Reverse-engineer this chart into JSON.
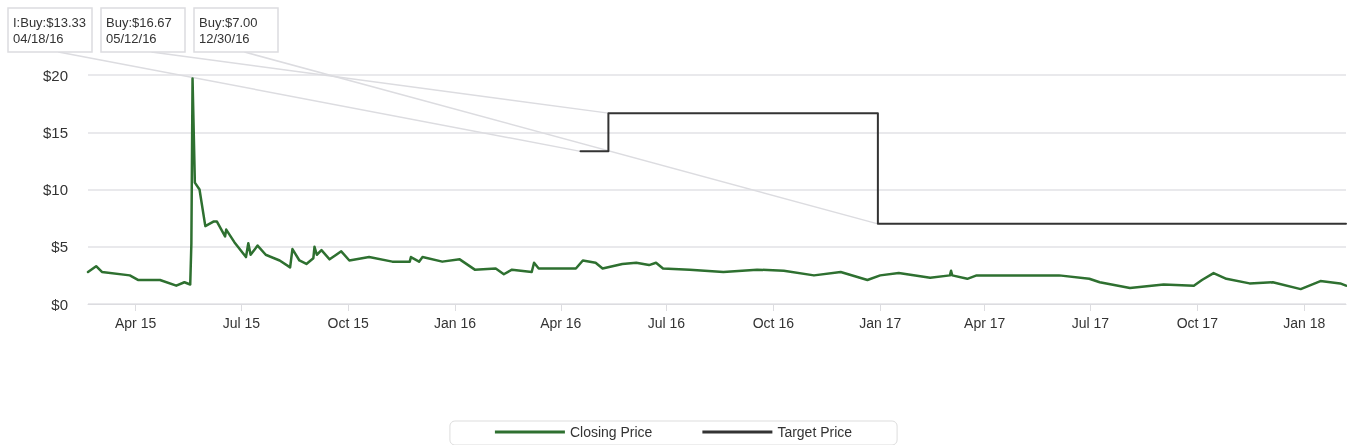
{
  "chart_data": {
    "type": "line",
    "xlim": [
      "2015-02-19",
      "2018-02-06"
    ],
    "xticks": [
      {
        "value": "2015-04-01",
        "label": "Apr 15"
      },
      {
        "value": "2015-07-01",
        "label": "Jul 15"
      },
      {
        "value": "2015-10-01",
        "label": "Oct 15"
      },
      {
        "value": "2016-01-01",
        "label": "Jan 16"
      },
      {
        "value": "2016-04-01",
        "label": "Apr 16"
      },
      {
        "value": "2016-07-01",
        "label": "Jul 16"
      },
      {
        "value": "2016-10-01",
        "label": "Oct 16"
      },
      {
        "value": "2017-01-01",
        "label": "Jan 17"
      },
      {
        "value": "2017-04-01",
        "label": "Apr 17"
      },
      {
        "value": "2017-07-01",
        "label": "Jul 17"
      },
      {
        "value": "2017-10-01",
        "label": "Oct 17"
      },
      {
        "value": "2018-01-01",
        "label": "Jan 18"
      }
    ],
    "ylim": [
      0,
      20
    ],
    "yticks": [
      {
        "value": 0,
        "label": "$0"
      },
      {
        "value": 5,
        "label": "$5"
      },
      {
        "value": 10,
        "label": "$10"
      },
      {
        "value": 15,
        "label": "$15"
      },
      {
        "value": 20,
        "label": "$20"
      }
    ],
    "grid": "y",
    "legend": "bottom",
    "marker": "none",
    "series": [
      {
        "name": "Closing Price",
        "type": "line",
        "color": "#2e7030",
        "x": [
          "2015-02-19",
          "2015-02-26",
          "2015-03-03",
          "2015-03-27",
          "2015-04-03",
          "2015-04-22",
          "2015-05-06",
          "2015-05-13",
          "2015-05-18",
          "2015-05-19",
          "2015-05-20",
          "2015-05-22",
          "2015-05-26",
          "2015-05-31",
          "2015-06-07",
          "2015-06-10",
          "2015-06-17",
          "2015-06-18",
          "2015-06-25",
          "2015-07-05",
          "2015-07-07",
          "2015-07-09",
          "2015-07-15",
          "2015-07-22",
          "2015-08-03",
          "2015-08-12",
          "2015-08-14",
          "2015-08-20",
          "2015-08-26",
          "2015-09-01",
          "2015-09-02",
          "2015-09-04",
          "2015-09-08",
          "2015-09-15",
          "2015-09-25",
          "2015-10-02",
          "2015-10-19",
          "2015-11-08",
          "2015-11-23",
          "2015-11-24",
          "2015-12-01",
          "2015-12-04",
          "2015-12-21",
          "2016-01-05",
          "2016-01-18",
          "2016-02-05",
          "2016-02-12",
          "2016-02-19",
          "2016-03-07",
          "2016-03-09",
          "2016-03-13",
          "2016-04-14",
          "2016-04-20",
          "2016-05-01",
          "2016-05-07",
          "2016-05-24",
          "2016-06-05",
          "2016-06-16",
          "2016-06-22",
          "2016-06-28",
          "2016-07-21",
          "2016-08-19",
          "2016-09-17",
          "2016-10-10",
          "2016-11-05",
          "2016-11-28",
          "2016-12-21",
          "2017-01-01",
          "2017-01-17",
          "2017-02-13",
          "2017-03-02",
          "2017-03-03",
          "2017-03-04",
          "2017-03-17",
          "2017-03-25",
          "2017-05-06",
          "2017-06-04",
          "2017-06-30",
          "2017-07-09",
          "2017-08-04",
          "2017-09-02",
          "2017-09-28",
          "2017-10-05",
          "2017-10-15",
          "2017-10-26",
          "2017-11-15",
          "2017-12-05",
          "2017-12-29",
          "2018-01-15",
          "2018-02-01",
          "2018-02-06"
        ],
        "values": [
          2.8,
          3.3,
          2.8,
          2.5,
          2.1,
          2.1,
          1.6,
          1.9,
          1.7,
          5.3,
          19.7,
          10.6,
          10.0,
          6.8,
          7.2,
          7.2,
          5.9,
          6.5,
          5.4,
          4.1,
          5.3,
          4.3,
          5.1,
          4.3,
          3.8,
          3.2,
          4.8,
          3.8,
          3.5,
          4.0,
          5.0,
          4.3,
          4.7,
          3.9,
          4.6,
          3.8,
          4.1,
          3.7,
          3.7,
          4.1,
          3.7,
          4.1,
          3.7,
          3.9,
          3.0,
          3.1,
          2.6,
          3.0,
          2.8,
          3.6,
          3.1,
          3.1,
          3.8,
          3.6,
          3.1,
          3.5,
          3.6,
          3.4,
          3.6,
          3.1,
          3.0,
          2.8,
          3.0,
          2.9,
          2.5,
          2.8,
          2.1,
          2.5,
          2.7,
          2.3,
          2.5,
          2.9,
          2.5,
          2.2,
          2.5,
          2.5,
          2.5,
          2.2,
          1.9,
          1.4,
          1.7,
          1.6,
          2.1,
          2.7,
          2.2,
          1.8,
          1.9,
          1.3,
          2.0,
          1.8,
          1.6
        ]
      },
      {
        "name": "Target Price",
        "type": "step",
        "color": "#333333",
        "x": [
          "2016-04-18",
          "2016-05-12",
          "2016-12-30",
          "2018-02-06"
        ],
        "values": [
          13.33,
          16.67,
          7.0,
          7.0
        ]
      }
    ],
    "annotations": [
      {
        "text": "I:Buy:$13.33\n04/18/16",
        "x": "2016-04-18",
        "y": 13.33
      },
      {
        "text": "Buy:$16.67\n05/12/16",
        "x": "2016-05-12",
        "y": 16.67
      },
      {
        "text": "Buy:$7.00\n12/30/16",
        "x": "2016-12-30",
        "y": 7.0
      }
    ]
  }
}
